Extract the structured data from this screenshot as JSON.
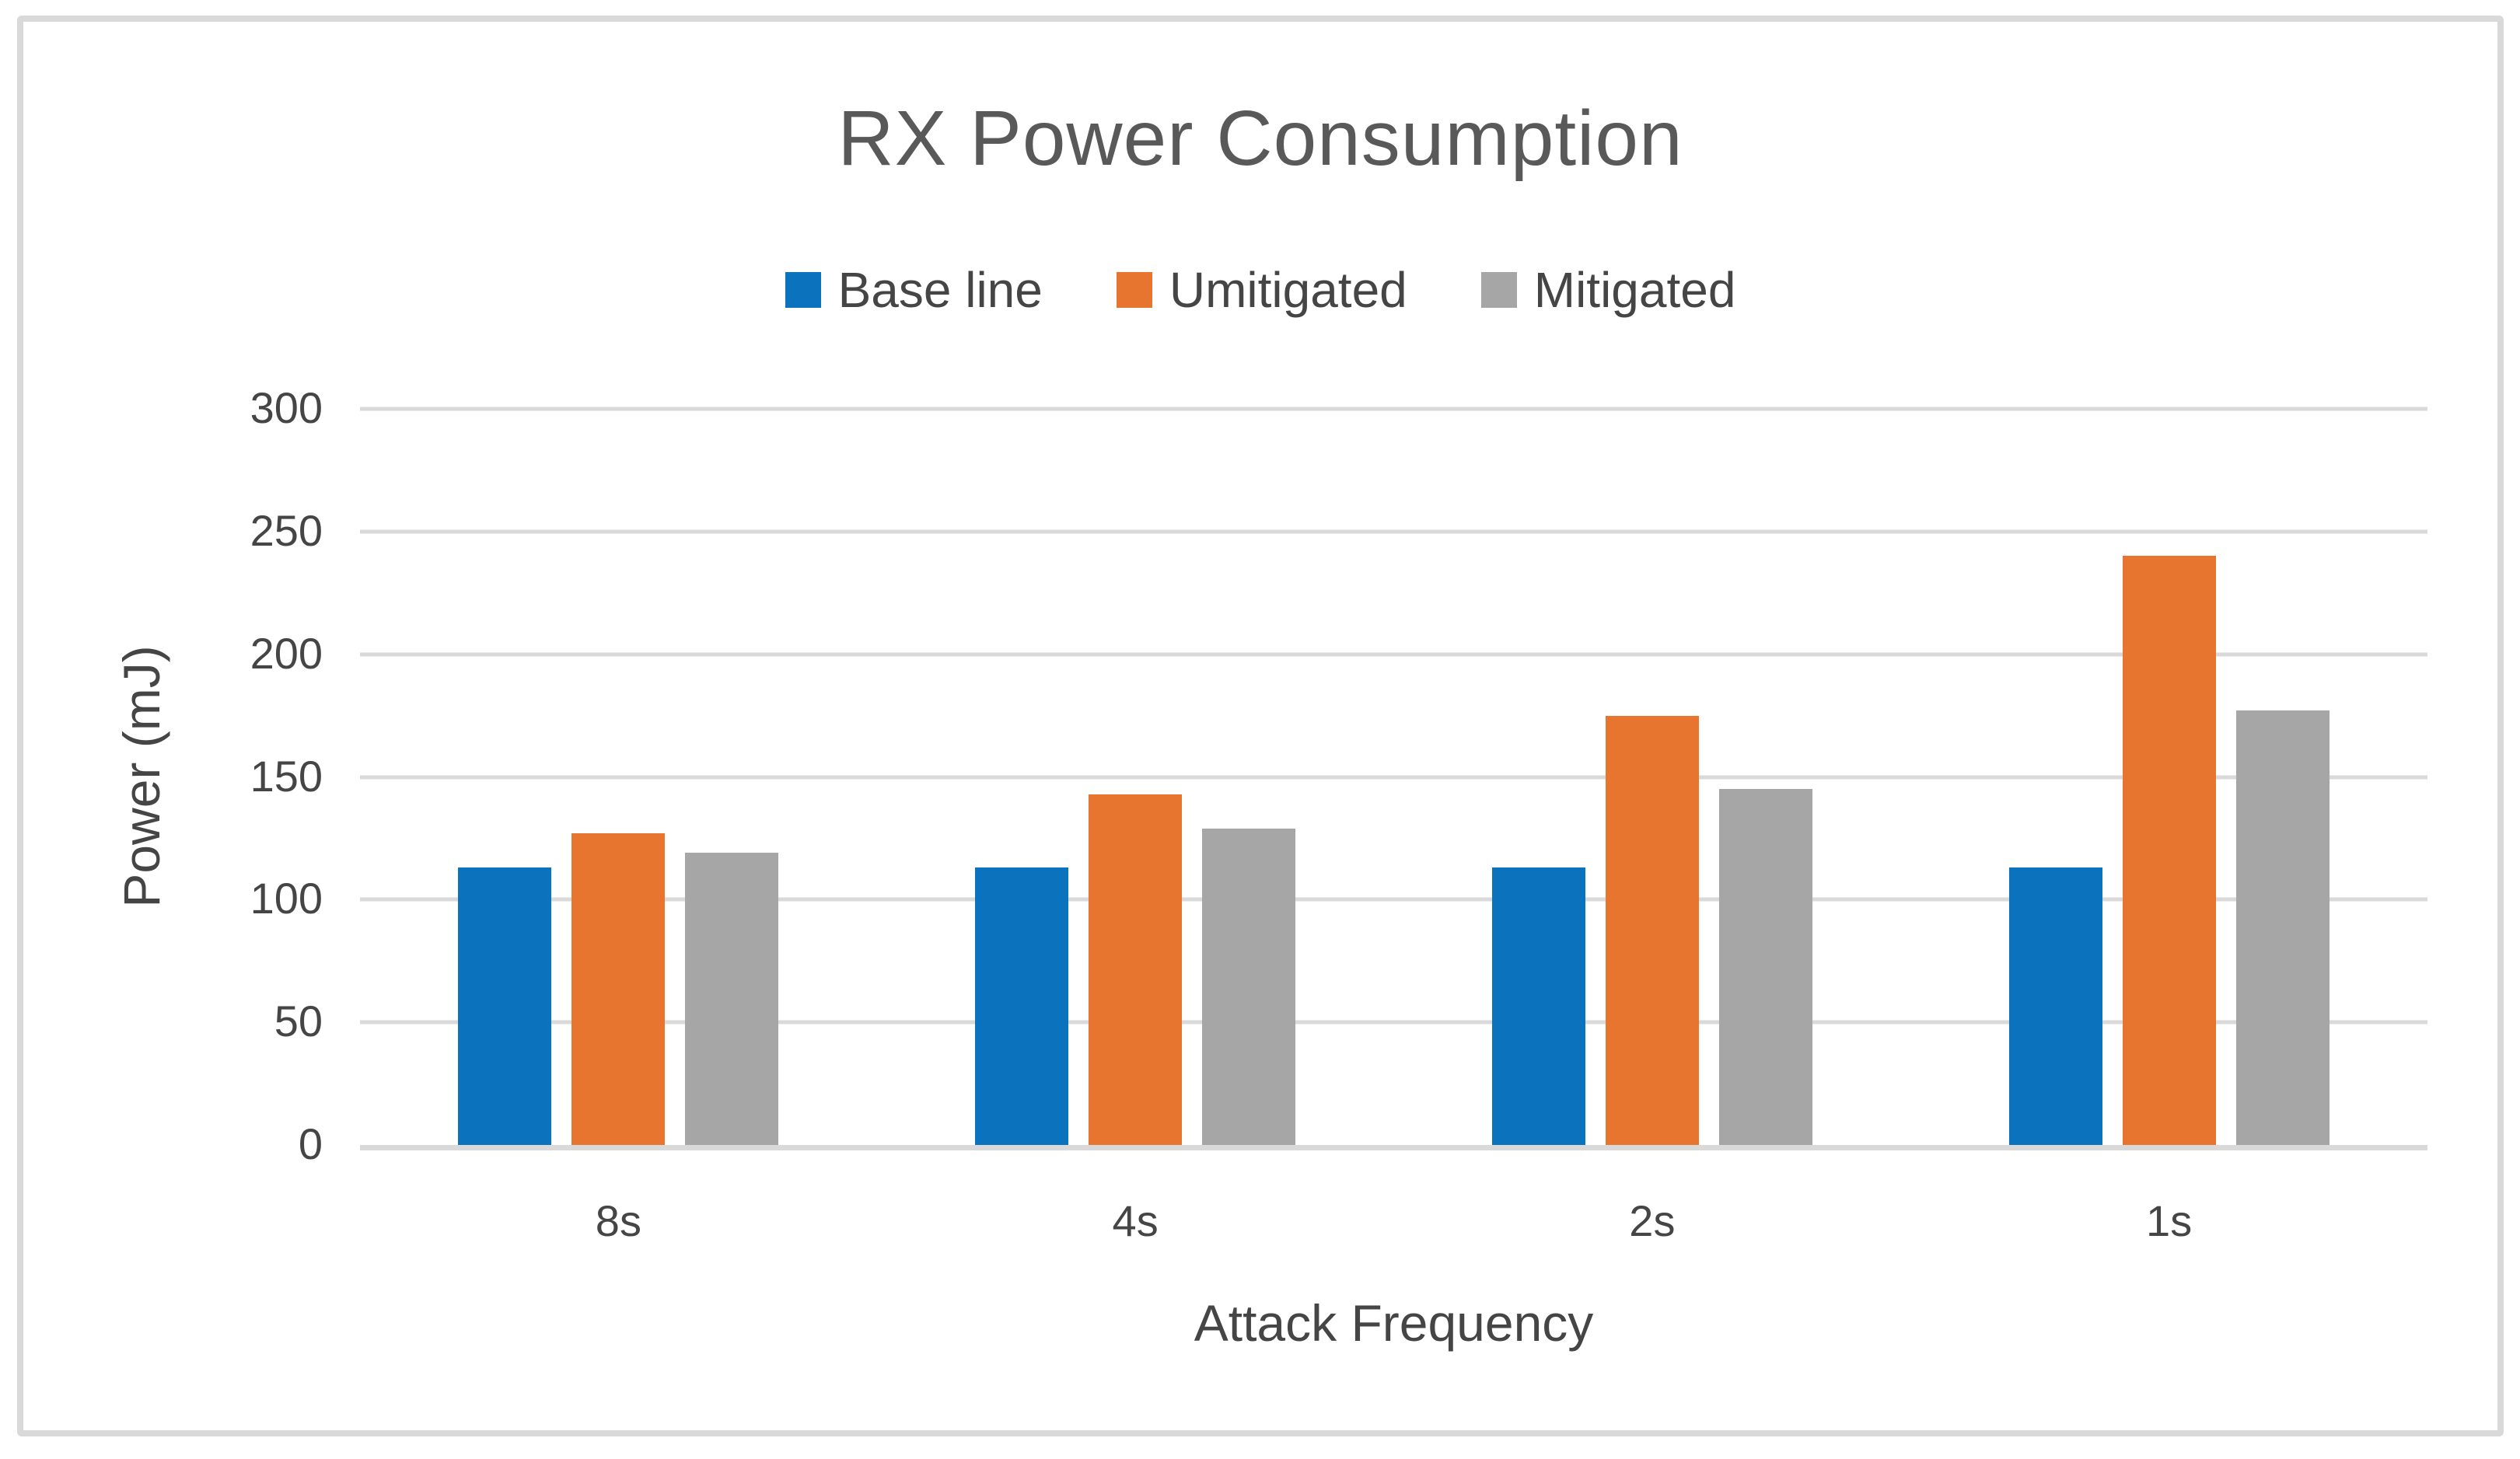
{
  "window": {
    "background": "#FFFFFF",
    "frame_border_color": "#D9D9D9"
  },
  "chart_data": {
    "type": "bar",
    "title": "RX Power Consumption",
    "categories": [
      "8s",
      "4s",
      "2s",
      "1s"
    ],
    "series": [
      {
        "name": "Base line",
        "color": "#0B73BE",
        "values": [
          113,
          113,
          113,
          113
        ]
      },
      {
        "name": "Umitigated",
        "color": "#E7752F",
        "values": [
          127,
          143,
          175,
          240
        ]
      },
      {
        "name": "Mitigated",
        "color": "#A6A6A6",
        "values": [
          119,
          129,
          145,
          177
        ]
      }
    ],
    "xlabel": "Attack Frequency",
    "ylabel": "Power (mJ)",
    "ylim": [
      0,
      300
    ],
    "yticks": [
      300,
      250,
      200,
      150,
      100,
      50,
      0
    ],
    "grid": true,
    "gridline_color": "#D9D9D9",
    "legend_position": "top-center",
    "title_color": "#595959",
    "text_color": "#454545"
  }
}
